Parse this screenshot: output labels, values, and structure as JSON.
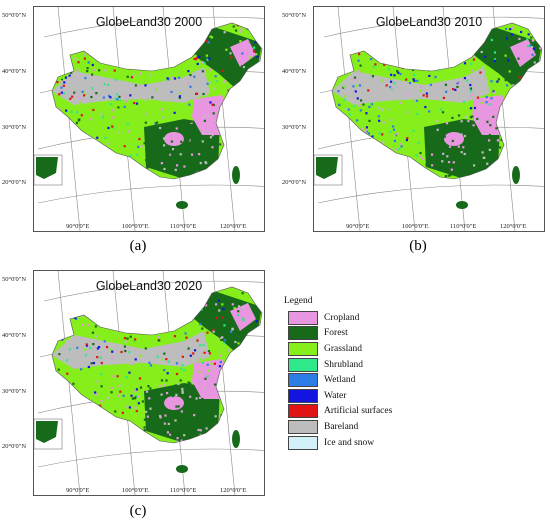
{
  "panels": [
    {
      "title": "GlobeLand30 2000",
      "label": "(a)"
    },
    {
      "title": "GlobeLand30 2010",
      "label": "(b)"
    },
    {
      "title": "GlobeLand30 2020",
      "label": "(c)"
    }
  ],
  "latitude_labels": [
    "50°0'0\"N",
    "40°0'0\"N",
    "30°0'0\"N",
    "20°0'0\"N"
  ],
  "longitude_labels": [
    "90°0'0\"E",
    "100°0'0\"E",
    "110°0'0\"E",
    "120°0'0\"E"
  ],
  "legend": {
    "title": "Legend",
    "items": [
      {
        "label": "Cropland",
        "color": "#e896e0"
      },
      {
        "label": "Forest",
        "color": "#176a1a"
      },
      {
        "label": "Grassland",
        "color": "#86ee1a"
      },
      {
        "label": "Shrubland",
        "color": "#2ee88a"
      },
      {
        "label": "Wetland",
        "color": "#2e7ce6"
      },
      {
        "label": "Water",
        "color": "#1414e0"
      },
      {
        "label": "Artificial surfaces",
        "color": "#e01414"
      },
      {
        "label": "Bareland",
        "color": "#bdbdbd"
      },
      {
        "label": "Ice and snow",
        "color": "#d4f0fa"
      }
    ]
  }
}
